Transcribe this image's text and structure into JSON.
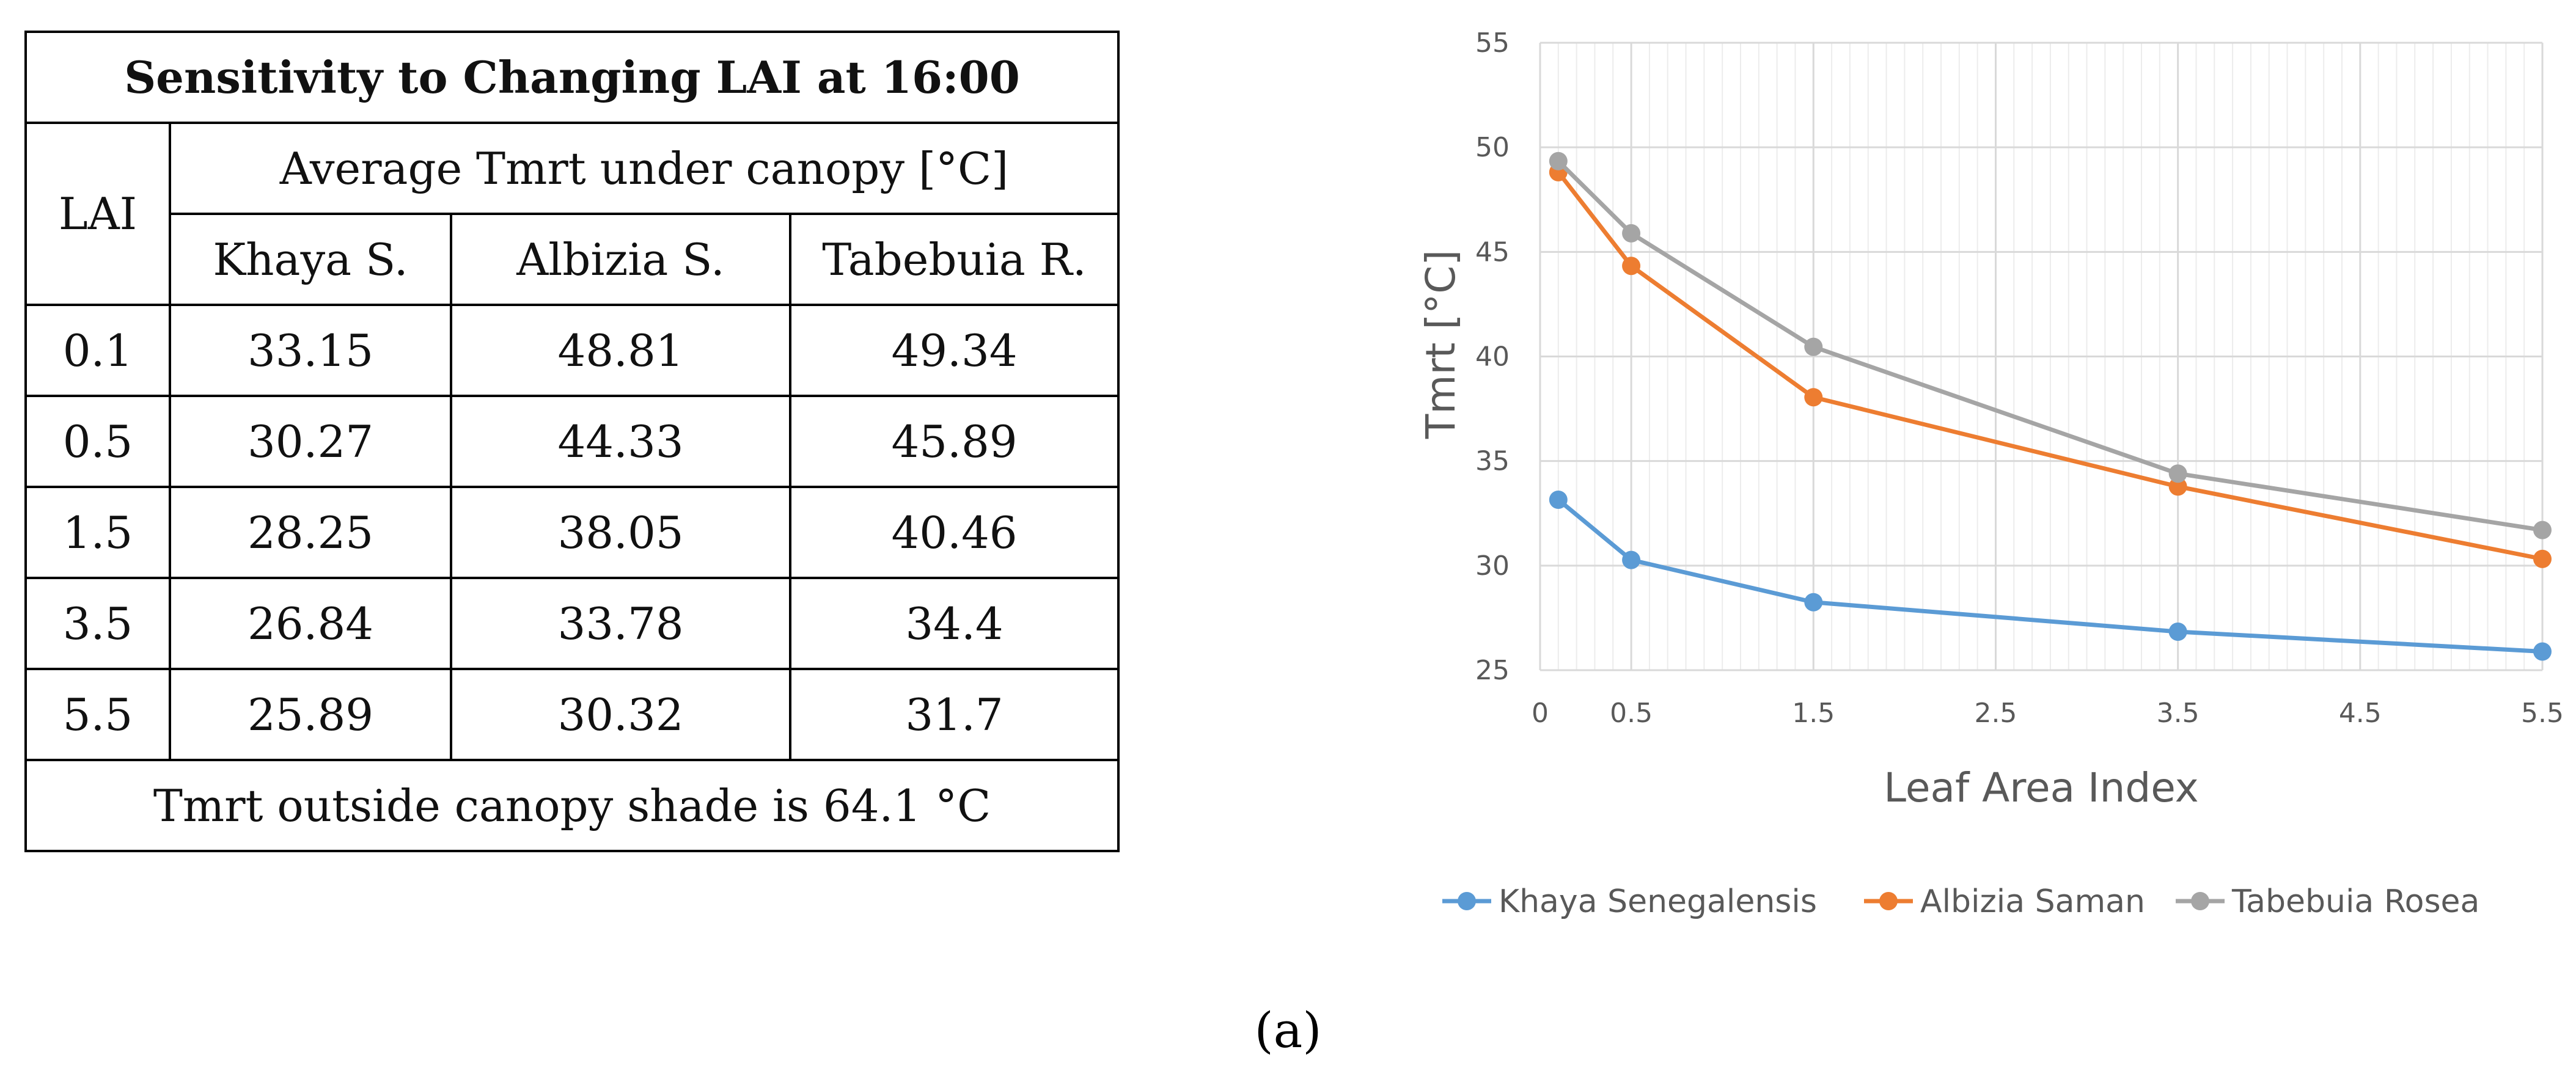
{
  "table": {
    "title": "Sensitivity to Changing LAI at 16:00",
    "lai_header": "LAI",
    "group_header": "Average Tmrt under canopy [°C]",
    "columns": [
      "Khaya S.",
      "Albizia S.",
      "Tabebuia R."
    ],
    "rows": [
      {
        "lai": "0.1",
        "values": [
          "33.15",
          "48.81",
          "49.34"
        ]
      },
      {
        "lai": "0.5",
        "values": [
          "30.27",
          "44.33",
          "45.89"
        ]
      },
      {
        "lai": "1.5",
        "values": [
          "28.25",
          "38.05",
          "40.46"
        ]
      },
      {
        "lai": "3.5",
        "values": [
          "26.84",
          "33.78",
          "34.4"
        ]
      },
      {
        "lai": "5.5",
        "values": [
          "25.89",
          "30.32",
          "31.7"
        ]
      }
    ],
    "footer": "Tmrt outside canopy shade is 64.1 °C"
  },
  "chart_data": {
    "type": "line",
    "title": "",
    "xlabel": "Leaf Area Index",
    "ylabel": "Tmrt [°C]",
    "xlim": [
      0,
      5.5
    ],
    "ylim": [
      25,
      55
    ],
    "x_ticks": [
      "0",
      "0.5",
      "1.5",
      "2.5",
      "3.5",
      "4.5",
      "5.5"
    ],
    "x_tick_values": [
      0,
      0.5,
      1.5,
      2.5,
      3.5,
      4.5,
      5.5
    ],
    "y_ticks": [
      "25",
      "30",
      "35",
      "40",
      "45",
      "50",
      "55"
    ],
    "y_tick_values": [
      25,
      30,
      35,
      40,
      45,
      50,
      55
    ],
    "x": [
      0.1,
      0.5,
      1.5,
      3.5,
      5.5
    ],
    "series": [
      {
        "name": "Khaya Senegalensis",
        "color": "#5b9bd5",
        "values": [
          33.15,
          30.27,
          28.25,
          26.84,
          25.89
        ]
      },
      {
        "name": "Albizia Saman",
        "color": "#ed7d31",
        "values": [
          48.81,
          44.33,
          38.05,
          33.78,
          30.32
        ]
      },
      {
        "name": "Tabebuia Rosea",
        "color": "#a5a5a5",
        "values": [
          49.34,
          45.89,
          40.46,
          34.4,
          31.7
        ]
      }
    ],
    "grid": true,
    "legend_position": "bottom"
  },
  "caption": "(a)"
}
